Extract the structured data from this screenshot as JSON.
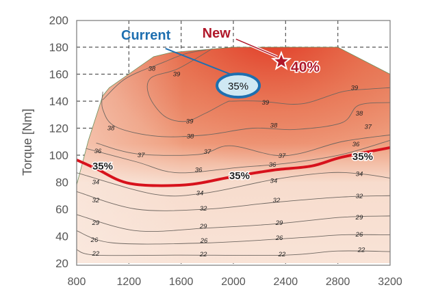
{
  "chart_data": {
    "type": "contour",
    "title": "",
    "xlabel": "",
    "ylabel": "Torque [Nm]",
    "xlim": [
      800,
      3200
    ],
    "ylim": [
      20,
      200
    ],
    "x_ticks": [
      800,
      1200,
      1600,
      2000,
      2400,
      2800,
      3200
    ],
    "y_ticks": [
      20,
      40,
      60,
      80,
      100,
      120,
      140,
      160,
      180,
      200
    ],
    "grid": true,
    "colors": {
      "low": "#f9e4d8",
      "mid": "#ec8a66",
      "high": "#e23a26",
      "line35": "#d7121c",
      "current": "#1e6fb0",
      "new": "#b0182a"
    },
    "envelope": [
      [
        800,
        78
      ],
      [
        890,
        111
      ],
      [
        1000,
        144
      ],
      [
        1050,
        150
      ],
      [
        1390,
        173
      ],
      [
        1520,
        176
      ],
      [
        2000,
        180
      ],
      [
        2800,
        180
      ],
      [
        3200,
        160
      ],
      [
        3200,
        20
      ],
      [
        800,
        20
      ]
    ],
    "contours": [
      {
        "level": 22,
        "points": [
          [
            800,
            30
          ],
          [
            950,
            26
          ],
          [
            1600,
            26
          ],
          [
            2400,
            26
          ],
          [
            2800,
            29
          ],
          [
            3200,
            28.6
          ]
        ]
      },
      {
        "level": 26,
        "points": [
          [
            800,
            44
          ],
          [
            1080,
            35
          ],
          [
            1790,
            35
          ],
          [
            2530,
            39
          ],
          [
            2830,
            41
          ],
          [
            3200,
            41
          ]
        ]
      },
      {
        "level": 29,
        "points": [
          [
            800,
            56
          ],
          [
            1260,
            44
          ],
          [
            1790,
            46
          ],
          [
            2310,
            49
          ],
          [
            2830,
            54
          ],
          [
            3200,
            55
          ]
        ]
      },
      {
        "level": 32,
        "points": [
          [
            800,
            73
          ],
          [
            1260,
            60
          ],
          [
            1790,
            60
          ],
          [
            2310,
            65
          ],
          [
            2830,
            69
          ],
          [
            3200,
            70
          ]
        ]
      },
      {
        "level": 34,
        "points": [
          [
            800,
            87
          ],
          [
            1400,
            71
          ],
          [
            1790,
            72
          ],
          [
            2310,
            82
          ],
          [
            2730,
            87
          ],
          [
            2990,
            86
          ],
          [
            3200,
            83
          ]
        ]
      },
      {
        "level": 35,
        "points": [
          [
            800,
            96.5
          ],
          [
            950,
            90
          ],
          [
            1210,
            79
          ],
          [
            1630,
            78
          ],
          [
            1990,
            84
          ],
          [
            2310,
            89
          ],
          [
            2600,
            92
          ],
          [
            2830,
            98.5
          ],
          [
            3200,
            105.6
          ]
        ]
      },
      {
        "level": 36,
        "points": [
          [
            870,
            105
          ],
          [
            1260,
            95
          ],
          [
            1570,
            87
          ],
          [
            2050,
            91
          ],
          [
            2410,
            94
          ],
          [
            2830,
            100.5
          ],
          [
            3200,
            111
          ]
        ]
      },
      {
        "level": 37,
        "points": [
          [
            950,
            109
          ],
          [
            1260,
            101
          ],
          [
            1730,
            100.5
          ],
          [
            1970,
            107
          ],
          [
            2310,
            100
          ],
          [
            2520,
            101.5
          ],
          [
            2830,
            110
          ],
          [
            3200,
            115
          ]
        ]
      },
      {
        "level": 38,
        "points": [
          [
            1000,
            147
          ],
          [
            1000,
            134
          ],
          [
            1100,
            121
          ],
          [
            1420,
            114
          ],
          [
            1790,
            115
          ],
          [
            2150,
            120
          ],
          [
            2470,
            119
          ],
          [
            2830,
            124
          ],
          [
            2960,
            137
          ],
          [
            3200,
            139
          ]
        ]
      },
      {
        "level": 38,
        "points": [
          [
            1000,
            141
          ],
          [
            1180,
            157
          ],
          [
            1470,
            169
          ],
          [
            1630,
            175
          ],
          [
            1790,
            178
          ]
        ]
      },
      {
        "level": 39,
        "points": [
          [
            1840,
            179
          ],
          [
            1575,
            164
          ],
          [
            1366,
            157
          ],
          [
            1355,
            144
          ],
          [
            1471,
            129
          ],
          [
            1628,
            125
          ],
          [
            1785,
            131
          ],
          [
            1942,
            139
          ],
          [
            1995,
            140
          ],
          [
            2204,
            140
          ],
          [
            2519,
            138
          ],
          [
            2833,
            147
          ],
          [
            3043,
            149
          ],
          [
            3200,
            150
          ]
        ]
      }
    ],
    "labels": [
      {
        "text": "38",
        "x": 1376,
        "y": 164
      },
      {
        "text": "39",
        "x": 1565,
        "y": 160
      },
      {
        "text": "39",
        "x": 2927,
        "y": 150
      },
      {
        "text": "39",
        "x": 2246,
        "y": 139
      },
      {
        "text": "39",
        "x": 1665,
        "y": 125
      },
      {
        "text": "38",
        "x": 1062,
        "y": 120
      },
      {
        "text": "38",
        "x": 1670,
        "y": 114
      },
      {
        "text": "38",
        "x": 2309,
        "y": 122
      },
      {
        "text": "38",
        "x": 2964,
        "y": 131
      },
      {
        "text": "37",
        "x": 3031,
        "y": 121
      },
      {
        "text": "36",
        "x": 2938,
        "y": 108
      },
      {
        "text": "37",
        "x": 2372,
        "y": 99.5
      },
      {
        "text": "36",
        "x": 2299,
        "y": 93
      },
      {
        "text": "37",
        "x": 1801,
        "y": 102.5
      },
      {
        "text": "37",
        "x": 1293,
        "y": 100
      },
      {
        "text": "36",
        "x": 962,
        "y": 103
      },
      {
        "text": "36",
        "x": 1733,
        "y": 89
      },
      {
        "text": "34",
        "x": 946,
        "y": 80
      },
      {
        "text": "34",
        "x": 1743,
        "y": 72
      },
      {
        "text": "34",
        "x": 2309,
        "y": 81
      },
      {
        "text": "34",
        "x": 2964,
        "y": 86
      },
      {
        "text": "32",
        "x": 946,
        "y": 66.6
      },
      {
        "text": "32",
        "x": 1770,
        "y": 60.5
      },
      {
        "text": "32",
        "x": 2330,
        "y": 66.6
      },
      {
        "text": "32",
        "x": 2964,
        "y": 69.6
      },
      {
        "text": "29",
        "x": 946,
        "y": 49.9
      },
      {
        "text": "29",
        "x": 1770,
        "y": 47.3
      },
      {
        "text": "29",
        "x": 2351,
        "y": 49.9
      },
      {
        "text": "29",
        "x": 2964,
        "y": 53.9
      },
      {
        "text": "26",
        "x": 936,
        "y": 37.2
      },
      {
        "text": "26",
        "x": 1775,
        "y": 36.7
      },
      {
        "text": "26",
        "x": 2351,
        "y": 38.7
      },
      {
        "text": "26",
        "x": 2964,
        "y": 41.3
      },
      {
        "text": "22",
        "x": 946,
        "y": 27
      },
      {
        "text": "22",
        "x": 1770,
        "y": 26.6
      },
      {
        "text": "22",
        "x": 2372,
        "y": 26.6
      },
      {
        "text": "22",
        "x": 2980,
        "y": 30
      }
    ],
    "line35_labels": [
      {
        "text": "35%",
        "x": 999,
        "y": 92
      },
      {
        "text": "35%",
        "x": 2047,
        "y": 84.8
      },
      {
        "text": "35%",
        "x": 2990,
        "y": 99
      }
    ],
    "annotations": {
      "current": {
        "label": "Current",
        "value": "35%",
        "x": 2037,
        "y": 151.6,
        "label_x": 1330,
        "label_y": 188
      },
      "new": {
        "label": "New",
        "value": "40%",
        "x": 2367,
        "y": 169.4,
        "label_x": 1870,
        "label_y": 189
      }
    }
  }
}
